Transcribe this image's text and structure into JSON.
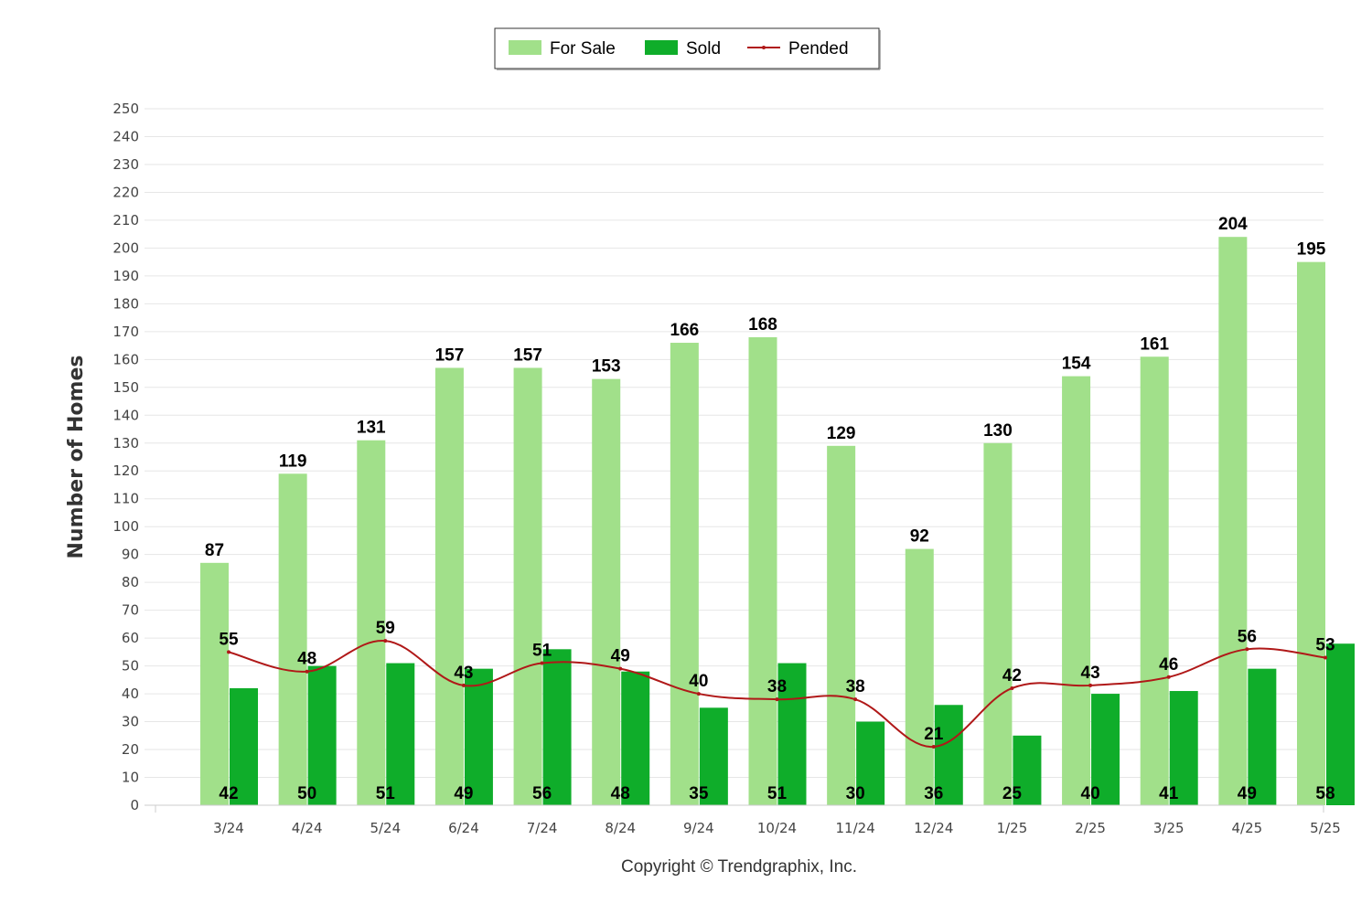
{
  "chart_data": {
    "type": "bar",
    "ylabel": "Number of Homes",
    "xlabel": "",
    "ylim": [
      0,
      250
    ],
    "ytick_step": 10,
    "grid": true,
    "legend_position": "top-center",
    "categories": [
      "3/24",
      "4/24",
      "5/24",
      "6/24",
      "7/24",
      "8/24",
      "9/24",
      "10/24",
      "11/24",
      "12/24",
      "1/25",
      "2/25",
      "3/25",
      "4/25",
      "5/25"
    ],
    "series": [
      {
        "name": "For Sale",
        "type": "bar",
        "color": "#a1e08a",
        "values": [
          87,
          119,
          131,
          157,
          157,
          153,
          166,
          168,
          129,
          92,
          130,
          154,
          161,
          204,
          195
        ]
      },
      {
        "name": "Sold",
        "type": "bar",
        "color": "#0fad2a",
        "values": [
          42,
          50,
          51,
          49,
          56,
          48,
          35,
          51,
          30,
          36,
          25,
          40,
          41,
          49,
          58
        ]
      },
      {
        "name": "Pended",
        "type": "line",
        "color": "#b01818",
        "values": [
          55,
          48,
          59,
          43,
          51,
          49,
          40,
          38,
          38,
          21,
          42,
          43,
          46,
          56,
          53
        ]
      }
    ]
  },
  "credit": "Copyright © Trendgraphix, Inc."
}
